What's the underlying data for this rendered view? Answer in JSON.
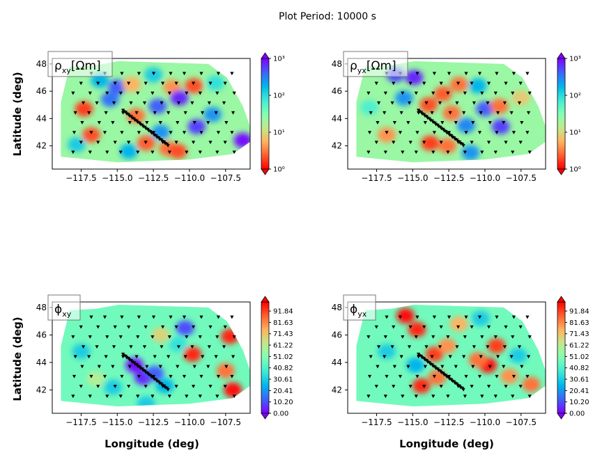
{
  "figure": {
    "title": "Plot Period: 10000 s",
    "xlabel": "Longitude (deg)",
    "ylabel": "Latitude (deg)"
  },
  "colors": {
    "rainbow": [
      "#8000ff",
      "#4062fa",
      "#00b5eb",
      "#40ecd4",
      "#80ffb4",
      "#c0eb8d",
      "#ffb360",
      "#ff6030",
      "#ff0000"
    ],
    "station": "#000000",
    "axes": "#000000"
  },
  "chart_data": [
    {
      "type": "heatmap",
      "panel": "rho_xy",
      "label_main": "ρ",
      "label_sub": "xy",
      "label_unit": "[Ωm]",
      "xlim": [
        -119.5,
        -105.8
      ],
      "ylim": [
        40.3,
        48.4
      ],
      "xticks": [
        -117.5,
        -115.0,
        -112.5,
        -110.0,
        -107.5
      ],
      "xtick_labels": [
        "−117.5",
        "−115.0",
        "−112.5",
        "−110.0",
        "−107.5"
      ],
      "yticks": [
        42,
        44,
        46,
        48
      ],
      "ytick_labels": [
        "42",
        "44",
        "46",
        "48"
      ],
      "colorbar": {
        "scale": "log",
        "range": [
          1,
          1000
        ],
        "ticks": [
          1,
          10,
          100,
          1000
        ],
        "tick_labels": [
          "10⁰",
          "10¹",
          "10²",
          "10³"
        ],
        "colormap": "rainbow_r",
        "extend": "both"
      },
      "background_value": 0.55,
      "anomalies": [
        {
          "lon": -117.3,
          "lat": 44.7,
          "v": 0.92
        },
        {
          "lon": -116.8,
          "lat": 42.8,
          "v": 0.9
        },
        {
          "lon": -116.2,
          "lat": 46.8,
          "v": 0.25
        },
        {
          "lon": -115.0,
          "lat": 46.3,
          "v": 0.12
        },
        {
          "lon": -115.5,
          "lat": 45.4,
          "v": 0.15
        },
        {
          "lon": -114.0,
          "lat": 46.5,
          "v": 0.75
        },
        {
          "lon": -113.7,
          "lat": 44.2,
          "v": 0.85
        },
        {
          "lon": -113.0,
          "lat": 42.2,
          "v": 0.88
        },
        {
          "lon": -114.2,
          "lat": 41.6,
          "v": 0.25
        },
        {
          "lon": -112.2,
          "lat": 44.9,
          "v": 0.12
        },
        {
          "lon": -111.2,
          "lat": 46.3,
          "v": 0.8
        },
        {
          "lon": -110.7,
          "lat": 45.5,
          "v": 0.05
        },
        {
          "lon": -109.5,
          "lat": 43.4,
          "v": 0.08
        },
        {
          "lon": -108.4,
          "lat": 44.3,
          "v": 0.2
        },
        {
          "lon": -111.5,
          "lat": 41.8,
          "v": 0.85
        },
        {
          "lon": -110.8,
          "lat": 41.6,
          "v": 0.9
        },
        {
          "lon": -106.3,
          "lat": 42.4,
          "v": 0.02
        },
        {
          "lon": -108.2,
          "lat": 46.6,
          "v": 0.35
        },
        {
          "lon": -109.7,
          "lat": 46.4,
          "v": 0.9
        },
        {
          "lon": -117.8,
          "lat": 42.1,
          "v": 0.3
        },
        {
          "lon": -112.0,
          "lat": 43.0,
          "v": 0.2
        },
        {
          "lon": -112.5,
          "lat": 47.2,
          "v": 0.3
        }
      ]
    },
    {
      "type": "heatmap",
      "panel": "rho_yx",
      "label_main": "ρ",
      "label_sub": "yx",
      "label_unit": "[Ωm]",
      "xlim": [
        -119.5,
        -105.8
      ],
      "ylim": [
        40.3,
        48.4
      ],
      "xticks": [
        -117.5,
        -115.0,
        -112.5,
        -110.0,
        -107.5
      ],
      "xtick_labels": [
        "−117.5",
        "−115.0",
        "−112.5",
        "−110.0",
        "−107.5"
      ],
      "yticks": [
        42,
        44,
        46,
        48
      ],
      "ytick_labels": [
        "42",
        "44",
        "46",
        "48"
      ],
      "colorbar": {
        "scale": "log",
        "range": [
          1,
          1000
        ],
        "ticks": [
          1,
          10,
          100,
          1000
        ],
        "tick_labels": [
          "10⁰",
          "10¹",
          "10²",
          "10³"
        ],
        "colormap": "rainbow_r",
        "extend": "both"
      },
      "background_value": 0.55,
      "anomalies": [
        {
          "lon": -116.2,
          "lat": 47.2,
          "v": 0.1
        },
        {
          "lon": -114.9,
          "lat": 47.0,
          "v": 0.05
        },
        {
          "lon": -115.6,
          "lat": 45.5,
          "v": 0.2
        },
        {
          "lon": -113.9,
          "lat": 45.0,
          "v": 0.9
        },
        {
          "lon": -112.9,
          "lat": 45.8,
          "v": 0.88
        },
        {
          "lon": -111.8,
          "lat": 46.5,
          "v": 0.85
        },
        {
          "lon": -110.0,
          "lat": 44.7,
          "v": 0.12
        },
        {
          "lon": -108.9,
          "lat": 43.4,
          "v": 0.08
        },
        {
          "lon": -109.0,
          "lat": 44.9,
          "v": 0.85
        },
        {
          "lon": -113.8,
          "lat": 42.2,
          "v": 0.92
        },
        {
          "lon": -112.6,
          "lat": 42.0,
          "v": 0.85
        },
        {
          "lon": -111.0,
          "lat": 41.5,
          "v": 0.2
        },
        {
          "lon": -112.3,
          "lat": 44.4,
          "v": 0.85
        },
        {
          "lon": -116.8,
          "lat": 42.8,
          "v": 0.8
        },
        {
          "lon": -111.3,
          "lat": 43.5,
          "v": 0.18
        },
        {
          "lon": -110.5,
          "lat": 46.4,
          "v": 0.25
        },
        {
          "lon": -107.5,
          "lat": 45.5,
          "v": 0.7
        },
        {
          "lon": -118.0,
          "lat": 44.8,
          "v": 0.4
        }
      ]
    },
    {
      "type": "heatmap",
      "panel": "phi_xy",
      "label_main": "ϕ",
      "label_sub": "xy",
      "label_unit": "",
      "xlim": [
        -119.5,
        -105.8
      ],
      "ylim": [
        40.3,
        48.4
      ],
      "xticks": [
        -117.5,
        -115.0,
        -112.5,
        -110.0,
        -107.5
      ],
      "xtick_labels": [
        "−117.5",
        "−115.0",
        "−112.5",
        "−110.0",
        "−107.5"
      ],
      "yticks": [
        42,
        44,
        46,
        48
      ],
      "ytick_labels": [
        "42",
        "44",
        "46",
        "48"
      ],
      "colorbar": {
        "scale": "linear",
        "range": [
          0,
          100
        ],
        "ticks": [
          0.0,
          10.2,
          20.41,
          30.61,
          40.82,
          51.02,
          61.22,
          71.43,
          81.63,
          91.84
        ],
        "tick_labels": [
          "0.00",
          "10.20",
          "20.41",
          "30.61",
          "40.82",
          "51.02",
          "61.22",
          "71.43",
          "81.63",
          "91.84"
        ],
        "colormap": "rainbow",
        "extend": "both"
      },
      "background_value": 0.47,
      "anomalies": [
        {
          "lon": -107.2,
          "lat": 45.9,
          "v": 0.95
        },
        {
          "lon": -109.8,
          "lat": 44.6,
          "v": 0.95
        },
        {
          "lon": -107.5,
          "lat": 43.4,
          "v": 0.85
        },
        {
          "lon": -107.0,
          "lat": 42.0,
          "v": 0.98
        },
        {
          "lon": -110.3,
          "lat": 46.5,
          "v": 0.1
        },
        {
          "lon": -113.8,
          "lat": 43.8,
          "v": 0.02
        },
        {
          "lon": -113.2,
          "lat": 42.9,
          "v": 0.05
        },
        {
          "lon": -112.4,
          "lat": 43.2,
          "v": 0.12
        },
        {
          "lon": -111.7,
          "lat": 42.3,
          "v": 0.25
        },
        {
          "lon": -112.0,
          "lat": 46.0,
          "v": 0.68
        },
        {
          "lon": -110.8,
          "lat": 45.3,
          "v": 0.35
        },
        {
          "lon": -115.3,
          "lat": 42.2,
          "v": 0.3
        },
        {
          "lon": -117.5,
          "lat": 44.8,
          "v": 0.3
        },
        {
          "lon": -116.5,
          "lat": 42.8,
          "v": 0.6
        },
        {
          "lon": -113.0,
          "lat": 41.0,
          "v": 0.3
        }
      ]
    },
    {
      "type": "heatmap",
      "panel": "phi_yx",
      "label_main": "ϕ",
      "label_sub": "yx",
      "label_unit": "",
      "xlim": [
        -119.5,
        -105.8
      ],
      "ylim": [
        40.3,
        48.4
      ],
      "xticks": [
        -117.5,
        -115.0,
        -112.5,
        -110.0,
        -107.5
      ],
      "xtick_labels": [
        "−117.5",
        "−115.0",
        "−112.5",
        "−110.0",
        "−107.5"
      ],
      "yticks": [
        42,
        44,
        46,
        48
      ],
      "ytick_labels": [
        "42",
        "44",
        "46",
        "48"
      ],
      "colorbar": {
        "scale": "linear",
        "range": [
          0,
          100
        ],
        "ticks": [
          0.0,
          10.2,
          20.41,
          30.61,
          40.82,
          51.02,
          61.22,
          71.43,
          81.63,
          91.84
        ],
        "tick_labels": [
          "0.00",
          "10.20",
          "20.41",
          "30.61",
          "40.82",
          "51.02",
          "61.22",
          "71.43",
          "81.63",
          "91.84"
        ],
        "colormap": "rainbow",
        "extend": "both"
      },
      "background_value": 0.47,
      "anomalies": [
        {
          "lon": -115.5,
          "lat": 47.4,
          "v": 0.98
        },
        {
          "lon": -114.7,
          "lat": 46.4,
          "v": 0.95
        },
        {
          "lon": -113.5,
          "lat": 44.6,
          "v": 0.92
        },
        {
          "lon": -112.6,
          "lat": 45.2,
          "v": 0.8
        },
        {
          "lon": -109.8,
          "lat": 43.8,
          "v": 0.98
        },
        {
          "lon": -109.2,
          "lat": 45.2,
          "v": 0.92
        },
        {
          "lon": -110.5,
          "lat": 44.2,
          "v": 0.85
        },
        {
          "lon": -114.4,
          "lat": 42.3,
          "v": 0.95
        },
        {
          "lon": -113.3,
          "lat": 42.9,
          "v": 0.85
        },
        {
          "lon": -106.8,
          "lat": 42.4,
          "v": 0.85
        },
        {
          "lon": -108.3,
          "lat": 43.0,
          "v": 0.8
        },
        {
          "lon": -111.8,
          "lat": 46.8,
          "v": 0.75
        },
        {
          "lon": -110.3,
          "lat": 47.2,
          "v": 0.3
        },
        {
          "lon": -114.8,
          "lat": 43.8,
          "v": 0.25
        },
        {
          "lon": -116.8,
          "lat": 44.8,
          "v": 0.3
        },
        {
          "lon": -107.7,
          "lat": 44.5,
          "v": 0.3
        }
      ]
    }
  ]
}
